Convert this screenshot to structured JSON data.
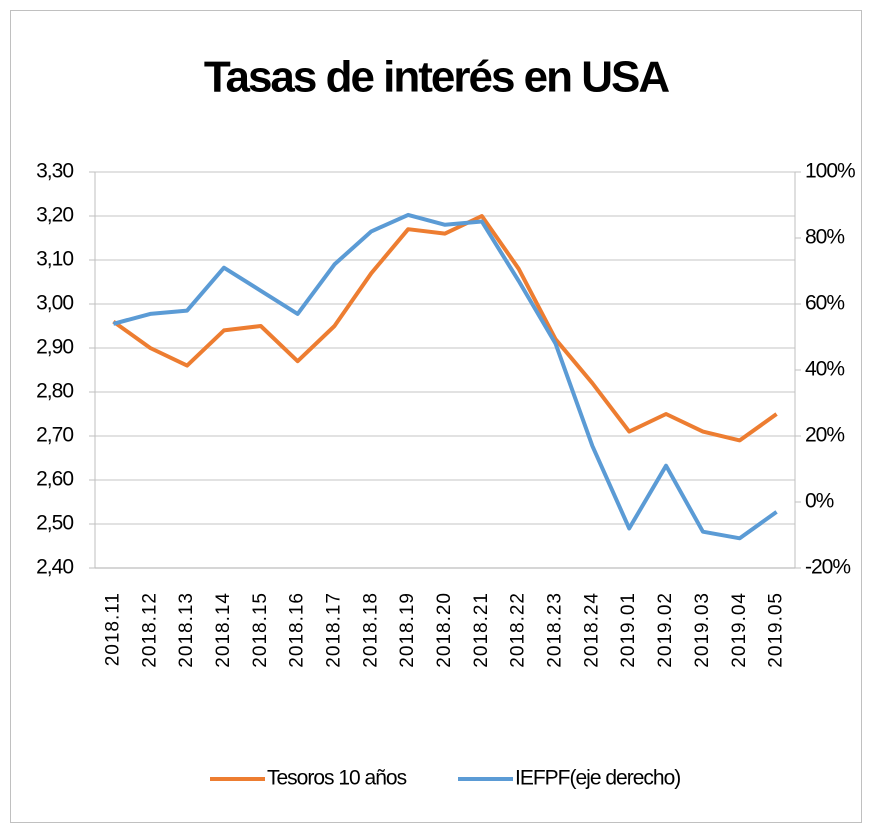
{
  "chart_data": {
    "type": "line",
    "title": "Tasas de interés en USA",
    "categories": [
      "2018.11",
      "2018.12",
      "2018.13",
      "2018.14",
      "2018.15",
      "2018.16",
      "2018.17",
      "2018.18",
      "2018.19",
      "2018.20",
      "2018.21",
      "2018.22",
      "2018.23",
      "2018.24",
      "2019.01",
      "2019.02",
      "2019.03",
      "2019.04",
      "2019.05"
    ],
    "series": [
      {
        "name": "Tesoros 10 años",
        "color": "#ed7d31",
        "values": [
          2.96,
          2.9,
          2.86,
          2.94,
          2.95,
          2.87,
          2.95,
          3.07,
          3.17,
          3.16,
          3.2,
          3.08,
          2.92,
          2.82,
          2.71,
          2.75,
          2.71,
          2.69,
          2.75
        ]
      },
      {
        "name": "IEFPF(eje derecho)",
        "color": "#5b9bd5",
        "axis": "y2",
        "values": [
          54,
          57,
          58,
          71,
          64,
          57,
          72,
          82,
          87,
          84,
          85,
          67,
          48,
          17,
          -8,
          11,
          -9,
          -11,
          -3
        ]
      }
    ],
    "ylim": [
      2.4,
      3.3
    ],
    "yticks": [
      {
        "value": 2.4,
        "label": "2,40"
      },
      {
        "value": 2.5,
        "label": "2,50"
      },
      {
        "value": 2.6,
        "label": "2,60"
      },
      {
        "value": 2.7,
        "label": "2,70"
      },
      {
        "value": 2.8,
        "label": "2,80"
      },
      {
        "value": 2.9,
        "label": "2,90"
      },
      {
        "value": 3.0,
        "label": "3,00"
      },
      {
        "value": 3.1,
        "label": "3,10"
      },
      {
        "value": 3.2,
        "label": "3,20"
      },
      {
        "value": 3.3,
        "label": "3,30"
      }
    ],
    "y2lim": [
      -20,
      100
    ],
    "y2ticks": [
      {
        "value": -20,
        "label": "-20%"
      },
      {
        "value": 0,
        "label": "0%"
      },
      {
        "value": 20,
        "label": "20%"
      },
      {
        "value": 40,
        "label": "40%"
      },
      {
        "value": 60,
        "label": "60%"
      },
      {
        "value": 80,
        "label": "80%"
      },
      {
        "value": 100,
        "label": "100%"
      }
    ],
    "grid": true,
    "legend": "bottom"
  }
}
